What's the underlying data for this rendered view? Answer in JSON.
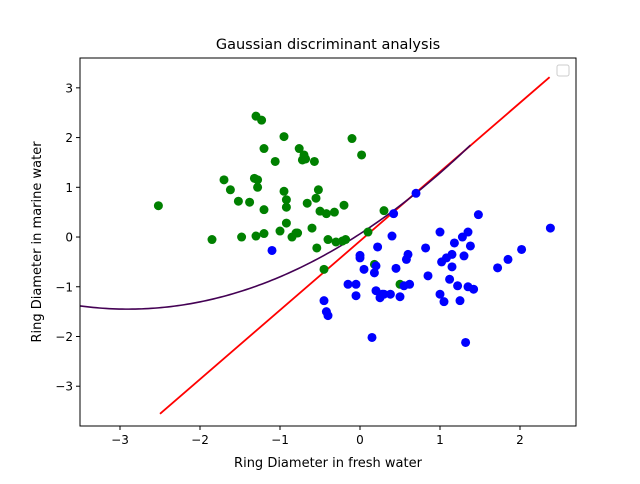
{
  "chart_data": {
    "type": "scatter",
    "title": "Gaussian discriminant analysis",
    "xlabel": "Ring Diameter in fresh water",
    "ylabel": "Ring Diameter in marine water",
    "xlim": [
      -3.5,
      2.7
    ],
    "ylim": [
      -3.8,
      3.6
    ],
    "x_ticks": [
      -3,
      -2,
      -1,
      0,
      1,
      2
    ],
    "y_ticks": [
      -3,
      -2,
      -1,
      0,
      1,
      2,
      3
    ],
    "x_tick_labels": [
      "−3",
      "−2",
      "−1",
      "0",
      "1",
      "2"
    ],
    "y_tick_labels": [
      "−3",
      "−2",
      "−1",
      "0",
      "1",
      "2",
      "3"
    ],
    "grid": false,
    "legend": {
      "placement": "top-right",
      "entries": []
    },
    "series": [
      {
        "color": "#008000",
        "marker": "circle",
        "points": [
          [
            -2.52,
            0.63
          ],
          [
            -1.85,
            -0.05
          ],
          [
            -1.7,
            1.15
          ],
          [
            -1.62,
            0.95
          ],
          [
            -1.52,
            0.72
          ],
          [
            -1.48,
            0.0
          ],
          [
            -1.38,
            0.7
          ],
          [
            -1.32,
            1.18
          ],
          [
            -1.3,
            2.43
          ],
          [
            -1.28,
            1.15
          ],
          [
            -1.28,
            1.0
          ],
          [
            -1.3,
            0.02
          ],
          [
            -1.23,
            2.35
          ],
          [
            -1.2,
            1.78
          ],
          [
            -1.2,
            0.55
          ],
          [
            -1.2,
            0.07
          ],
          [
            -1.06,
            1.52
          ],
          [
            -1.0,
            0.12
          ],
          [
            -0.95,
            2.02
          ],
          [
            -0.95,
            0.92
          ],
          [
            -0.92,
            0.75
          ],
          [
            -0.92,
            0.6
          ],
          [
            -0.92,
            0.28
          ],
          [
            -0.85,
            0.0
          ],
          [
            -0.8,
            0.08
          ],
          [
            -0.78,
            0.08
          ],
          [
            -0.76,
            1.78
          ],
          [
            -0.72,
            1.55
          ],
          [
            -0.7,
            1.65
          ],
          [
            -0.68,
            1.57
          ],
          [
            -0.66,
            0.68
          ],
          [
            -0.6,
            0.18
          ],
          [
            -0.57,
            1.52
          ],
          [
            -0.55,
            0.78
          ],
          [
            -0.54,
            -0.22
          ],
          [
            -0.52,
            0.95
          ],
          [
            -0.5,
            0.52
          ],
          [
            -0.45,
            -0.65
          ],
          [
            -0.42,
            0.47
          ],
          [
            -0.4,
            -0.05
          ],
          [
            -0.32,
            0.5
          ],
          [
            -0.3,
            -0.1
          ],
          [
            -0.22,
            -0.08
          ],
          [
            -0.2,
            0.64
          ],
          [
            -0.18,
            -0.05
          ],
          [
            -0.1,
            1.98
          ],
          [
            0.02,
            1.65
          ],
          [
            0.1,
            0.1
          ],
          [
            0.18,
            -0.55
          ],
          [
            0.3,
            0.53
          ],
          [
            0.5,
            -0.95
          ]
        ]
      },
      {
        "color": "#0000ff",
        "marker": "circle",
        "points": [
          [
            -1.1,
            -0.27
          ],
          [
            -0.45,
            -1.28
          ],
          [
            -0.42,
            -1.5
          ],
          [
            -0.4,
            -1.58
          ],
          [
            -0.15,
            -0.95
          ],
          [
            -0.05,
            -1.18
          ],
          [
            -0.05,
            -0.95
          ],
          [
            0.0,
            -0.42
          ],
          [
            0.0,
            -0.37
          ],
          [
            0.05,
            -0.65
          ],
          [
            0.15,
            -2.02
          ],
          [
            0.18,
            -0.72
          ],
          [
            0.2,
            -0.58
          ],
          [
            0.2,
            -1.08
          ],
          [
            0.22,
            -0.2
          ],
          [
            0.25,
            -1.22
          ],
          [
            0.28,
            -1.15
          ],
          [
            0.3,
            -1.15
          ],
          [
            0.38,
            -1.15
          ],
          [
            0.4,
            0.02
          ],
          [
            0.42,
            0.47
          ],
          [
            0.45,
            -0.63
          ],
          [
            0.5,
            -1.2
          ],
          [
            0.55,
            -0.98
          ],
          [
            0.58,
            -0.45
          ],
          [
            0.6,
            -0.35
          ],
          [
            0.62,
            -0.95
          ],
          [
            0.7,
            0.88
          ],
          [
            0.82,
            -0.22
          ],
          [
            0.85,
            -0.78
          ],
          [
            1.0,
            0.1
          ],
          [
            1.0,
            -1.15
          ],
          [
            1.02,
            -0.5
          ],
          [
            1.05,
            -1.3
          ],
          [
            1.08,
            -0.42
          ],
          [
            1.12,
            -0.85
          ],
          [
            1.15,
            -0.35
          ],
          [
            1.15,
            -0.6
          ],
          [
            1.18,
            -0.12
          ],
          [
            1.22,
            -0.98
          ],
          [
            1.25,
            -1.28
          ],
          [
            1.28,
            0.0
          ],
          [
            1.3,
            -0.38
          ],
          [
            1.32,
            -2.12
          ],
          [
            1.35,
            0.1
          ],
          [
            1.35,
            -1.0
          ],
          [
            1.38,
            -0.18
          ],
          [
            1.42,
            -1.05
          ],
          [
            1.48,
            0.45
          ],
          [
            1.72,
            -0.62
          ],
          [
            1.85,
            -0.45
          ],
          [
            2.02,
            -0.25
          ],
          [
            2.38,
            0.18
          ]
        ]
      }
    ],
    "lines": [
      {
        "kind": "linear boundary",
        "color": "#ff0000",
        "x_range": [
          -2.5,
          2.37
        ],
        "slope": 1.39,
        "intercept": -0.08
      },
      {
        "kind": "quadratic boundary",
        "color": "#440154",
        "x_range": [
          -3.5,
          1.38
        ],
        "a": 0.18,
        "h": -2.9,
        "k": -1.45
      }
    ]
  }
}
